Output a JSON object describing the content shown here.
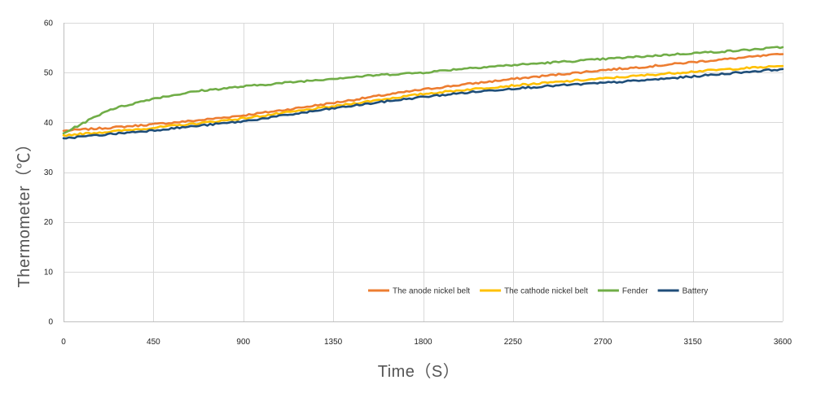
{
  "chart_data": {
    "type": "line",
    "title": "",
    "xlabel": "Time（S）",
    "ylabel": "Thermometer（℃）",
    "xlim": [
      0,
      3600
    ],
    "ylim": [
      0,
      60
    ],
    "x_ticks": [
      0,
      450,
      900,
      1350,
      1800,
      2250,
      2700,
      3150,
      3600
    ],
    "y_ticks": [
      0,
      10,
      20,
      30,
      40,
      50,
      60
    ],
    "grid": true,
    "legend_position": "bottom-right",
    "x": [
      0,
      225,
      450,
      675,
      900,
      1125,
      1350,
      1575,
      1800,
      2025,
      2250,
      2475,
      2700,
      2925,
      3150,
      3375,
      3600
    ],
    "series": [
      {
        "name": "The anode nickel belt",
        "color": "#ED7D31",
        "values": [
          38.3,
          38.9,
          39.6,
          40.4,
          41.4,
          42.6,
          43.9,
          45.3,
          46.6,
          47.7,
          48.7,
          49.6,
          50.5,
          51.2,
          52.1,
          52.9,
          53.7
        ]
      },
      {
        "name": "The cathode nickel belt",
        "color": "#FFC000",
        "values": [
          37.4,
          38.1,
          38.9,
          39.8,
          40.8,
          42.0,
          43.2,
          44.5,
          45.7,
          46.6,
          47.4,
          48.1,
          48.8,
          49.5,
          50.2,
          50.8,
          51.3
        ]
      },
      {
        "name": "Fender",
        "color": "#70AD47",
        "values": [
          37.8,
          42.5,
          44.8,
          46.3,
          47.2,
          48.0,
          48.8,
          49.5,
          50.0,
          50.9,
          51.5,
          52.1,
          52.7,
          53.3,
          53.9,
          54.4,
          55.1
        ]
      },
      {
        "name": "Battery",
        "color": "#1F4E79",
        "values": [
          36.8,
          37.6,
          38.4,
          39.3,
          40.2,
          41.5,
          42.8,
          44.0,
          45.1,
          46.0,
          46.8,
          47.4,
          47.9,
          48.5,
          49.2,
          50.0,
          50.7
        ]
      }
    ]
  }
}
